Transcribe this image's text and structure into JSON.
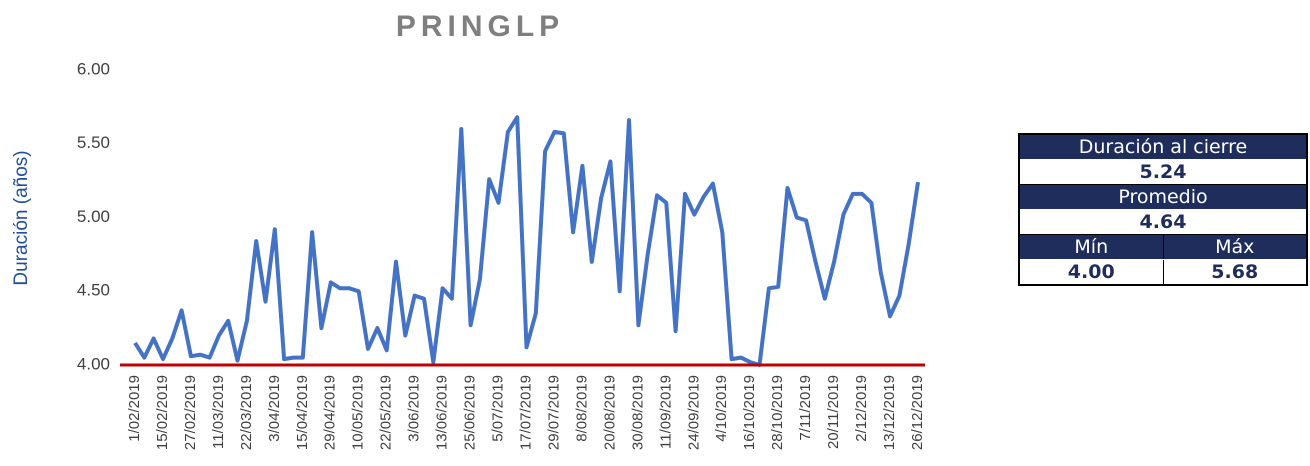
{
  "chart_data": {
    "type": "line",
    "title": "PRINGLP",
    "y_label": "Duración (años)",
    "categories": [
      "1/02/2019",
      null,
      null,
      "15/02/2019",
      null,
      null,
      "27/02/2019",
      null,
      null,
      "11/03/2019",
      null,
      null,
      "22/03/2019",
      null,
      null,
      "3/04/2019",
      null,
      null,
      "15/04/2019",
      null,
      null,
      "29/04/2019",
      null,
      null,
      "10/05/2019",
      null,
      null,
      "22/05/2019",
      null,
      null,
      "3/06/2019",
      null,
      null,
      "13/06/2019",
      null,
      null,
      "25/06/2019",
      null,
      null,
      "5/07/2019",
      null,
      null,
      "17/07/2019",
      null,
      null,
      "29/07/2019",
      null,
      null,
      "8/08/2019",
      null,
      null,
      "20/08/2019",
      null,
      null,
      "30/08/2019",
      null,
      null,
      "11/09/2019",
      null,
      null,
      "24/09/2019",
      null,
      null,
      "4/10/2019",
      null,
      null,
      "16/10/2019",
      null,
      null,
      "28/10/2019",
      null,
      null,
      "7/11/2019",
      null,
      null,
      "20/11/2019",
      null,
      null,
      "2/12/2019",
      null,
      null,
      "13/12/2019",
      null,
      null,
      "26/12/2019"
    ],
    "series": [
      {
        "name": "PRINGLP",
        "color": "#4472c4",
        "values": [
          4.15,
          4.05,
          4.18,
          4.04,
          4.18,
          4.37,
          4.06,
          4.07,
          4.05,
          4.2,
          4.3,
          4.03,
          4.3,
          4.84,
          4.43,
          4.92,
          4.04,
          4.05,
          4.05,
          4.9,
          4.25,
          4.56,
          4.52,
          4.52,
          4.5,
          4.11,
          4.25,
          4.1,
          4.7,
          4.2,
          4.47,
          4.45,
          4.02,
          4.52,
          4.45,
          5.6,
          4.27,
          4.58,
          5.26,
          5.1,
          5.58,
          5.68,
          4.12,
          4.35,
          5.45,
          5.58,
          5.57,
          4.9,
          5.35,
          4.7,
          5.13,
          5.38,
          4.5,
          5.66,
          4.27,
          4.75,
          5.15,
          5.1,
          4.23,
          5.16,
          5.02,
          5.14,
          5.23,
          4.9,
          4.04,
          4.05,
          4.02,
          4.0,
          4.52,
          4.53,
          5.2,
          5.0,
          4.98,
          4.7,
          4.45,
          4.7,
          5.02,
          5.16,
          5.16,
          5.1,
          4.63,
          4.33,
          4.47,
          4.82,
          5.24
        ]
      }
    ],
    "ylim": [
      4,
      6
    ],
    "yticks": [
      {
        "value": 4,
        "label": "4.00"
      },
      {
        "value": 4.5,
        "label": "4.50"
      },
      {
        "value": 5,
        "label": "5.00"
      },
      {
        "value": 5.5,
        "label": "5.50"
      },
      {
        "value": 6,
        "label": "6.00"
      }
    ]
  },
  "table": {
    "rows": [
      [
        "Duración al cierre"
      ],
      [
        "5.24"
      ],
      [
        "Promedio"
      ],
      [
        "4.64"
      ],
      [
        "Mín",
        "Máx"
      ],
      [
        "4.00",
        "5.68"
      ]
    ]
  }
}
